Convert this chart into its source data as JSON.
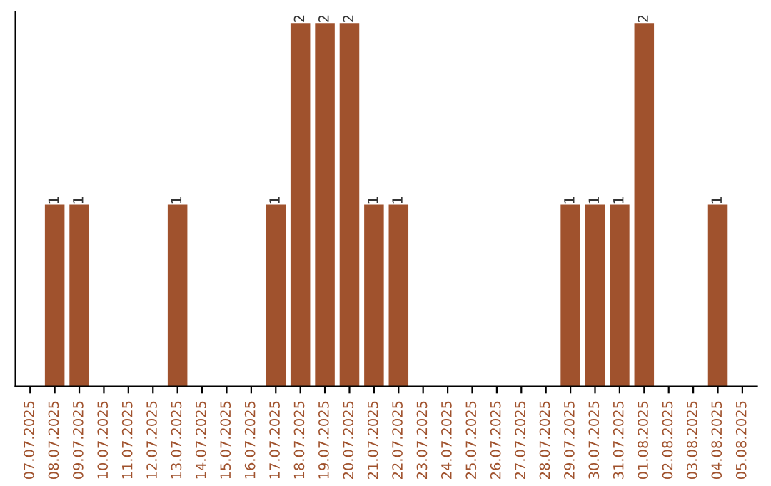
{
  "chart_data": {
    "type": "bar",
    "categories": [
      "07.07.2025",
      "08.07.2025",
      "09.07.2025",
      "10.07.2025",
      "11.07.2025",
      "12.07.2025",
      "13.07.2025",
      "14.07.2025",
      "15.07.2025",
      "16.07.2025",
      "17.07.2025",
      "18.07.2025",
      "19.07.2025",
      "20.07.2025",
      "21.07.2025",
      "22.07.2025",
      "23.07.2025",
      "24.07.2025",
      "25.07.2025",
      "26.07.2025",
      "27.07.2025",
      "28.07.2025",
      "29.07.2025",
      "30.07.2025",
      "31.07.2025",
      "01.08.2025",
      "02.08.2025",
      "03.08.2025",
      "04.08.2025",
      "05.08.2025"
    ],
    "values": [
      0,
      1,
      1,
      0,
      0,
      0,
      1,
      0,
      0,
      0,
      1,
      2,
      2,
      2,
      1,
      1,
      0,
      0,
      0,
      0,
      0,
      0,
      1,
      1,
      1,
      2,
      0,
      0,
      1,
      0
    ],
    "value_labels": [
      null,
      "1",
      "1",
      null,
      null,
      null,
      "1",
      null,
      null,
      null,
      "1",
      "2",
      "2",
      "2",
      "1",
      "1",
      null,
      null,
      null,
      null,
      null,
      null,
      "1",
      "1",
      "1",
      "2",
      null,
      null,
      "1",
      null
    ],
    "color": "#a0522d",
    "grid": false,
    "legend": false
  }
}
